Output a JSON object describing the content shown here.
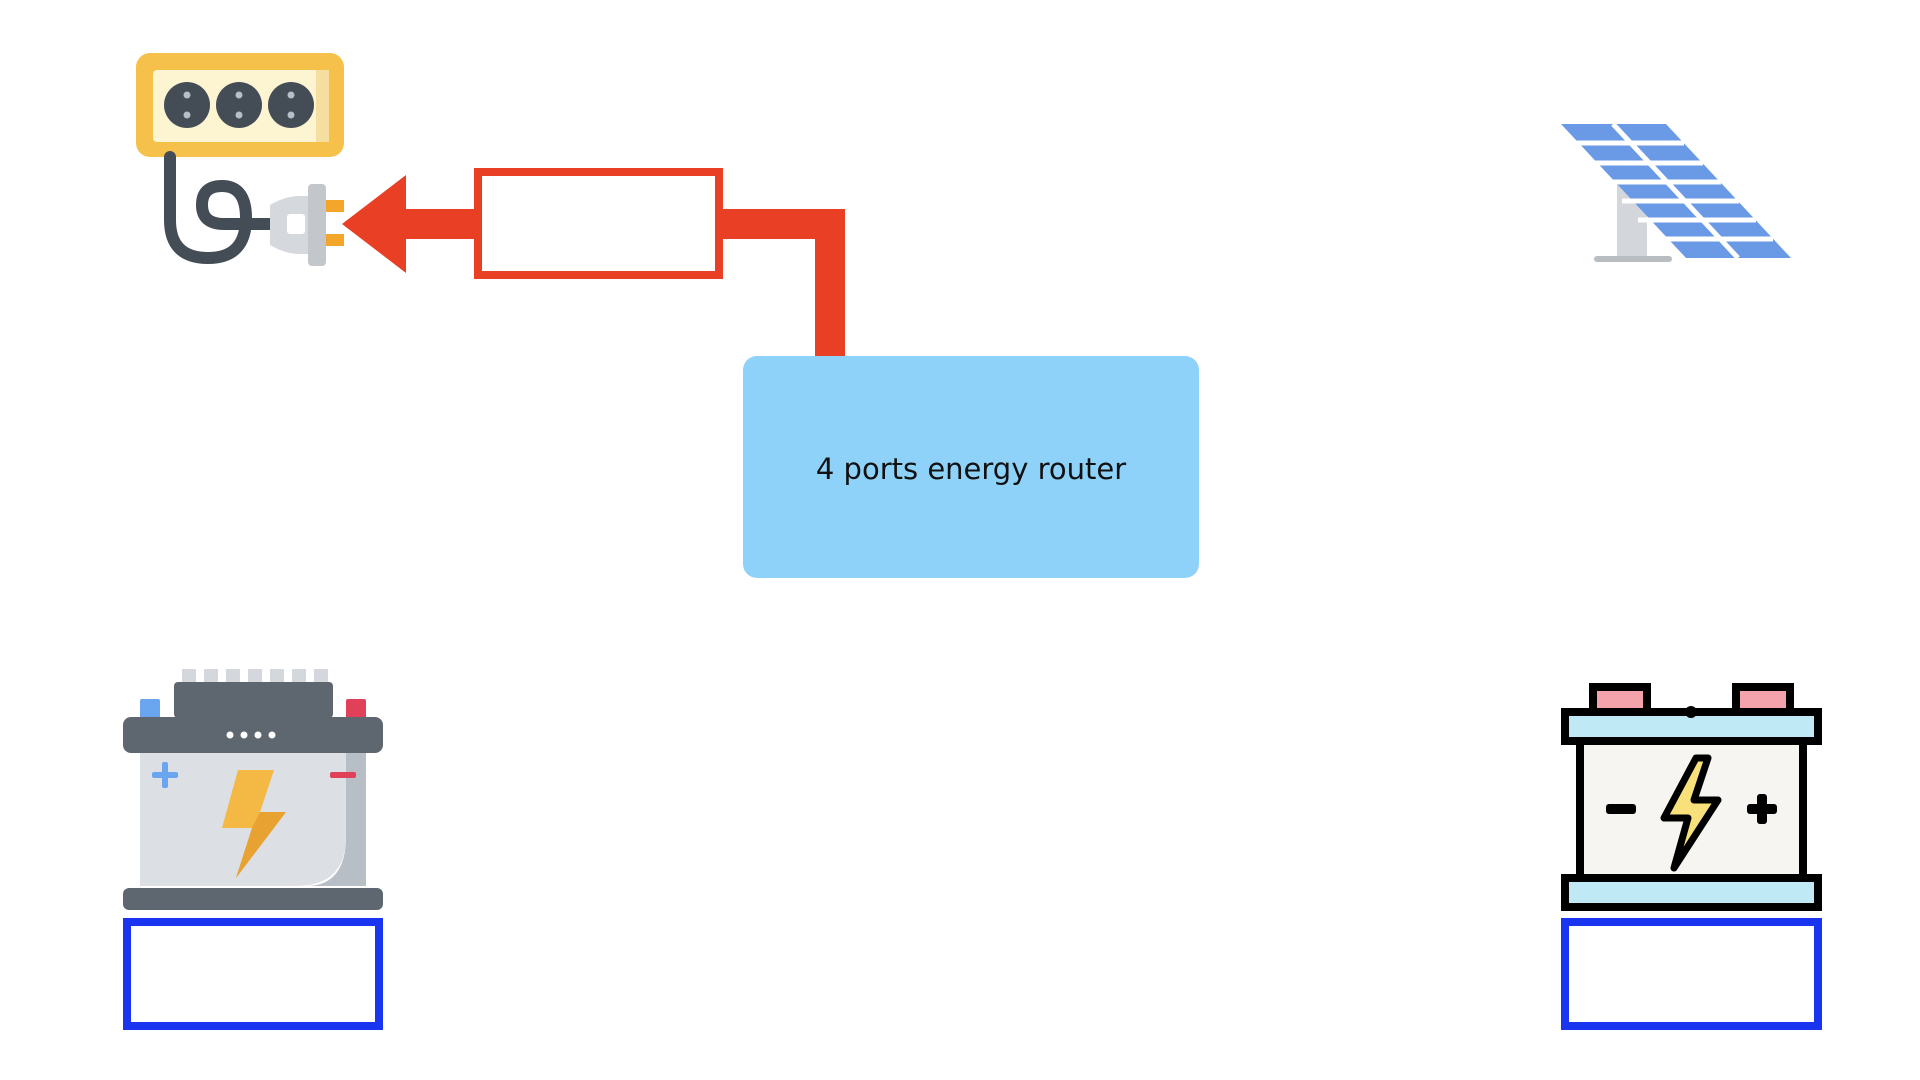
{
  "router": {
    "label": "4 ports energy router"
  },
  "nodes": [
    {
      "id": "power-outlet",
      "icon": "power-strip-plug-icon"
    },
    {
      "id": "solar-panel",
      "icon": "solar-panel-icon"
    },
    {
      "id": "car-battery",
      "icon": "car-battery-icon"
    },
    {
      "id": "storage-battery",
      "icon": "storage-battery-icon"
    }
  ],
  "value_boxes": {
    "grid": "",
    "car_battery": "",
    "storage_battery": ""
  },
  "colors": {
    "router_fill": "#8ed2fa",
    "flow_arrow": "#e83f25",
    "grid_box_border": "#e83f25",
    "battery_box_border": "#1a35f0"
  }
}
